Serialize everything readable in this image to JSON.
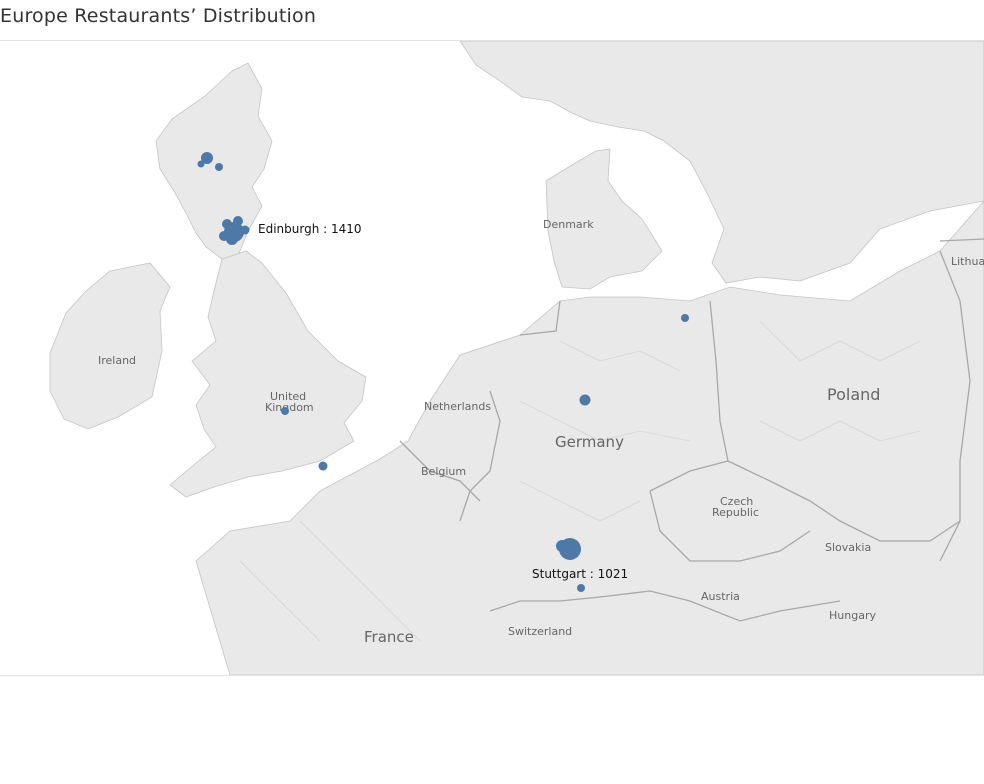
{
  "title": "Europe Restaurants’ Distribution",
  "places": {
    "ireland": "Ireland",
    "uk_line1": "United",
    "uk_line2": "Kingdom",
    "netherlands": "Netherlands",
    "belgium": "Belgium",
    "denmark": "Denmark",
    "germany": "Germany",
    "poland": "Poland",
    "lithuania": "Lithua",
    "czech_line1": "Czech",
    "czech_line2": "Republic",
    "slovakia": "Slovakia",
    "austria": "Austria",
    "hungary": "Hungary",
    "switzerland": "Switzerland",
    "france": "France"
  },
  "callouts": {
    "edinburgh": "Edinburgh : 1410",
    "stuttgart": "Stuttgart : 1021"
  },
  "colors": {
    "marker": "#4e79a7",
    "land": "#e9e9e9",
    "sea": "#ffffff",
    "border": "#b8b8b8"
  }
}
